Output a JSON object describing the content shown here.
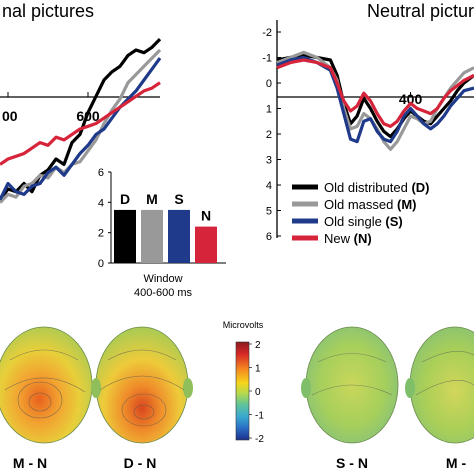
{
  "panels": {
    "left_title": "nal pictures",
    "right_title": "Neutral pictur"
  },
  "chart_data": [
    {
      "type": "line",
      "panel": "emotional-erp-partial",
      "x_ticks": [
        "00",
        "600"
      ],
      "xlim": [
        380,
        780
      ],
      "ylim": [
        -2,
        6
      ],
      "y_inverted": true,
      "series": [
        {
          "name": "Old distributed",
          "color": "#000000",
          "x": [
            380,
            400,
            420,
            440,
            460,
            480,
            500,
            520,
            540,
            560,
            580,
            600,
            620,
            640,
            660,
            680,
            700,
            720,
            740,
            760,
            780
          ],
          "y": [
            4.6,
            4.2,
            4.3,
            4.0,
            4.3,
            3.7,
            3.5,
            3.1,
            3.3,
            2.5,
            2.2,
            1.4,
            0.8,
            0.2,
            -0.1,
            -0.3,
            -0.7,
            -0.9,
            -0.8,
            -1.0,
            -1.3
          ]
        },
        {
          "name": "Old massed",
          "color": "#999999",
          "x": [
            380,
            400,
            420,
            440,
            460,
            480,
            500,
            520,
            540,
            560,
            580,
            600,
            620,
            640,
            660,
            680,
            700,
            720,
            740,
            760,
            780
          ],
          "y": [
            4.7,
            4.4,
            4.5,
            4.1,
            4.0,
            3.7,
            3.8,
            3.4,
            3.6,
            3.3,
            3.2,
            2.8,
            2.4,
            1.8,
            1.3,
            0.9,
            0.3,
            0.0,
            -0.3,
            -0.6,
            -0.9
          ]
        },
        {
          "name": "Old single",
          "color": "#1f3a8a",
          "x": [
            380,
            400,
            420,
            440,
            460,
            480,
            500,
            520,
            540,
            560,
            580,
            600,
            620,
            640,
            660,
            680,
            700,
            720,
            740,
            760,
            780
          ],
          "y": [
            4.6,
            4.0,
            4.3,
            4.4,
            4.1,
            4.0,
            3.6,
            3.4,
            3.7,
            3.3,
            2.9,
            2.6,
            2.2,
            2.0,
            1.6,
            1.2,
            0.9,
            0.6,
            0.2,
            -0.2,
            -0.6
          ]
        },
        {
          "name": "New",
          "color": "#d6243b",
          "x": [
            380,
            400,
            420,
            440,
            460,
            480,
            500,
            520,
            540,
            560,
            580,
            600,
            620,
            640,
            660,
            680,
            700,
            720,
            740,
            760,
            780
          ],
          "y": [
            3.3,
            3.1,
            3.0,
            2.9,
            2.7,
            2.5,
            2.6,
            2.3,
            2.4,
            2.2,
            2.0,
            1.9,
            1.8,
            1.6,
            1.4,
            1.2,
            1.0,
            0.8,
            0.6,
            0.5,
            0.3
          ]
        }
      ]
    },
    {
      "type": "bar",
      "panel": "window-bars",
      "categories": [
        "D",
        "M",
        "S",
        "N"
      ],
      "values": [
        3.5,
        3.5,
        3.5,
        2.4
      ],
      "colors": [
        "#000000",
        "#999999",
        "#1f3a8a",
        "#d6243b"
      ],
      "ylim": [
        0,
        6
      ],
      "y_ticks": [
        "0",
        "2",
        "4",
        "6"
      ],
      "xlabel": "Window",
      "xlabel2": "400-600 ms"
    },
    {
      "type": "line",
      "panel": "neutral-erp-partial",
      "x_ticks": [
        "400"
      ],
      "xlim": [
        0,
        590
      ],
      "ylim": [
        -2,
        6
      ],
      "y_ticks": [
        "-2",
        "-1",
        "0",
        "1",
        "2",
        "3",
        "4",
        "5",
        "6"
      ],
      "y_inverted": true,
      "series": [
        {
          "name": "Old distributed",
          "color": "#000000",
          "x": [
            0,
            40,
            80,
            120,
            160,
            180,
            200,
            220,
            240,
            260,
            280,
            300,
            320,
            340,
            360,
            380,
            400,
            420,
            440,
            460,
            480,
            500,
            520,
            540,
            560,
            590
          ],
          "y": [
            -0.9,
            -1.0,
            -1.1,
            -1.0,
            -0.9,
            -0.3,
            0.8,
            1.6,
            1.3,
            0.6,
            1.0,
            1.5,
            1.9,
            2.1,
            1.8,
            1.4,
            1.1,
            1.3,
            1.5,
            1.6,
            1.3,
            1.0,
            0.7,
            0.3,
            0.0,
            -0.3
          ]
        },
        {
          "name": "Old massed",
          "color": "#999999",
          "x": [
            0,
            40,
            80,
            120,
            160,
            180,
            200,
            220,
            240,
            260,
            280,
            300,
            320,
            340,
            360,
            380,
            400,
            420,
            440,
            460,
            480,
            500,
            520,
            540,
            560,
            590
          ],
          "y": [
            -0.8,
            -1.0,
            -1.2,
            -1.0,
            -0.6,
            -0.1,
            1.0,
            1.8,
            1.7,
            1.2,
            1.4,
            1.8,
            2.3,
            2.6,
            2.3,
            1.8,
            1.3,
            1.4,
            1.6,
            1.5,
            1.0,
            0.6,
            0.2,
            -0.1,
            -0.4,
            -0.6
          ]
        },
        {
          "name": "Old single",
          "color": "#1f3a8a",
          "x": [
            0,
            40,
            80,
            120,
            160,
            180,
            200,
            220,
            240,
            260,
            280,
            300,
            320,
            340,
            360,
            380,
            400,
            420,
            440,
            460,
            480,
            500,
            520,
            540,
            560,
            590
          ],
          "y": [
            -0.7,
            -0.9,
            -1.0,
            -0.8,
            -0.5,
            0.2,
            1.2,
            2.2,
            2.3,
            1.5,
            1.4,
            1.9,
            2.2,
            2.3,
            1.9,
            1.3,
            1.0,
            1.3,
            1.6,
            1.8,
            1.6,
            1.3,
            0.9,
            0.6,
            0.3,
            0.2
          ]
        },
        {
          "name": "New",
          "color": "#d6243b",
          "x": [
            0,
            40,
            80,
            120,
            160,
            180,
            200,
            220,
            240,
            260,
            280,
            300,
            320,
            340,
            360,
            380,
            400,
            420,
            440,
            460,
            480,
            500,
            520,
            540,
            560,
            590
          ],
          "y": [
            -0.6,
            -0.8,
            -0.9,
            -0.8,
            -0.6,
            0.0,
            0.7,
            1.1,
            0.9,
            0.4,
            0.7,
            1.2,
            1.6,
            1.7,
            1.5,
            1.1,
            0.8,
            1.0,
            1.1,
            1.2,
            1.0,
            0.6,
            0.3,
            0.1,
            -0.1,
            -0.3
          ]
        }
      ]
    }
  ],
  "legend": [
    {
      "label": "Old distributed",
      "code": "(D)",
      "color": "#000000"
    },
    {
      "label": "Old massed",
      "code": "(M)",
      "color": "#999999"
    },
    {
      "label": "Old single",
      "code": "(S)",
      "color": "#1f3a8a"
    },
    {
      "label": "New",
      "code": "(N)",
      "color": "#d6243b"
    }
  ],
  "colorbar": {
    "title": "Microvolts",
    "ticks": [
      "2",
      "1",
      "0",
      "-1",
      "-2"
    ],
    "colors": [
      "#8b1a1a",
      "#d62728",
      "#f58a1f",
      "#f5d61c",
      "#b8d94a",
      "#5fc49a",
      "#3aaad0",
      "#2a6dc4",
      "#1c2f8a"
    ]
  },
  "topomaps": [
    {
      "label": "M - N",
      "tone": "#e8902c"
    },
    {
      "label": "D - N",
      "tone": "#e36a22"
    },
    {
      "label": "S - N",
      "tone": "#9ccc52"
    },
    {
      "label": "M -",
      "tone": "#a6d157"
    }
  ]
}
